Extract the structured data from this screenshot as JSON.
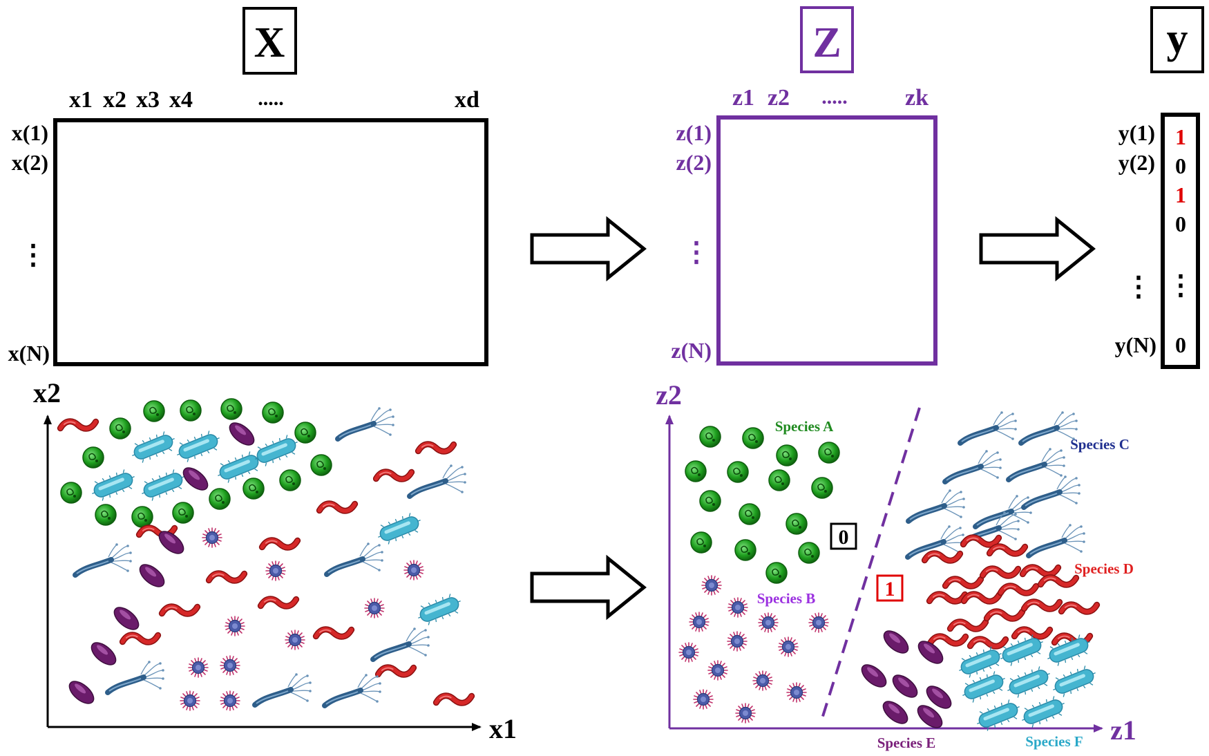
{
  "colors": {
    "black": "#000000",
    "purple": "#7030A0",
    "red": "#E00000",
    "green_label": "#1F8A1F",
    "species_b": "#9B30E0",
    "species_c": "#1F2F8F",
    "species_d": "#E02020",
    "species_e": "#7A1F7A",
    "species_f": "#2AA8C8",
    "coccus": "#1E9E1E",
    "bacillus": "#45B5D0",
    "spirillum": "#C81E1E",
    "diplo": "#6A1B6A",
    "virus": "#4A5AA8",
    "flagellate": "#3E6E9A"
  },
  "icons": {
    "coccus": "green-coccus-icon",
    "bacillus": "cyan-bacillus-icon",
    "spirillum": "red-spirillum-icon",
    "diplo": "purple-bacterium-icon",
    "virus": "spiky-virus-icon",
    "flagellate": "flagellated-bacterium-icon"
  },
  "matrices": {
    "x": {
      "title": "X",
      "col_labels": [
        "x1",
        "x2",
        "x3",
        "x4",
        ".....",
        "xd"
      ],
      "row_labels": [
        "x(1)",
        "x(2)",
        "⋮",
        "x(N)"
      ]
    },
    "z": {
      "title": "Z",
      "col_labels": [
        "z1",
        "z2",
        ".....",
        "zk"
      ],
      "row_labels": [
        "z(1)",
        "z(2)",
        "⋮",
        "z(N)"
      ]
    },
    "y": {
      "title": "y",
      "row_labels": [
        "y(1)",
        "y(2)",
        "⋮",
        "y(N)"
      ],
      "values": [
        "1",
        "0",
        "1",
        "0",
        "⋮",
        "0"
      ]
    }
  },
  "plots": {
    "raw": {
      "xlabel": "x1",
      "ylabel": "x2"
    },
    "latent": {
      "xlabel": "z1",
      "ylabel": "z2",
      "region_labels": [
        "0",
        "1"
      ],
      "species": [
        "Species A",
        "Species B",
        "Species C",
        "Species D",
        "Species E",
        "Species F"
      ]
    }
  }
}
